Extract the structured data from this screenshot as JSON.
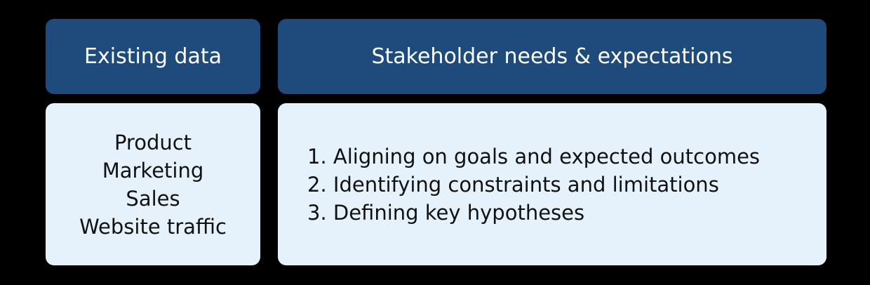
{
  "colors": {
    "background": "#000000",
    "header_fill": "#1f4b7c",
    "header_text": "#ffffff",
    "content_fill": "#e6f2fb",
    "content_text": "#111111"
  },
  "left_column": {
    "header": "Existing data",
    "items": [
      "Product",
      "Marketing",
      "Sales",
      "Website traffic"
    ]
  },
  "right_column": {
    "header": "Stakeholder needs & expectations",
    "items": [
      "1. Aligning on goals and expected outcomes",
      "2. Identifying constraints and limitations",
      "3. Defining key hypotheses"
    ]
  }
}
